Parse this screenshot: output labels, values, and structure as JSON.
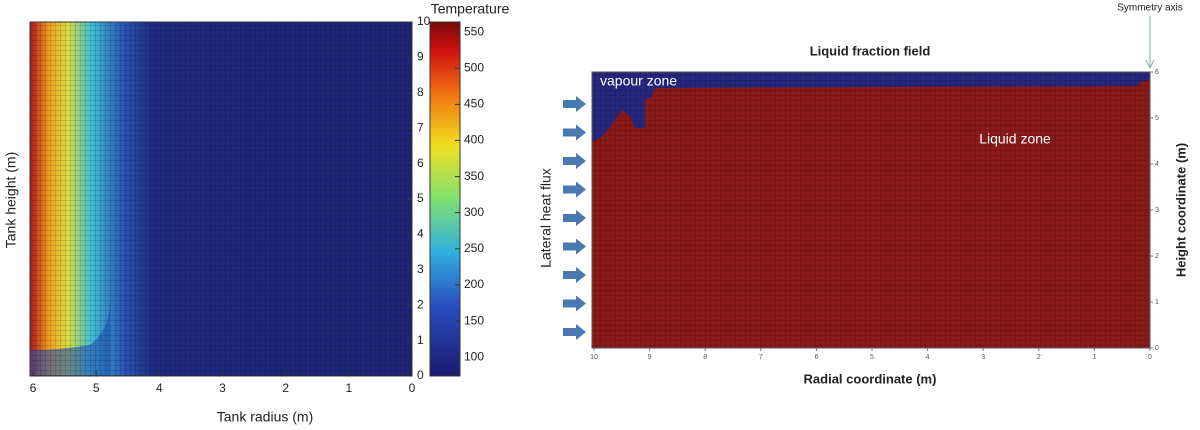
{
  "chart_data": [
    {
      "type": "heatmap",
      "xlabel": "Tank radius (m)",
      "ylabel": "Tank height (m)",
      "colorbar_title": "Temperature",
      "xlim": [
        6,
        0
      ],
      "xticks": [
        6,
        5,
        4,
        3,
        2,
        1,
        0
      ],
      "ylim": [
        0,
        10
      ],
      "yticks": [
        0,
        1,
        2,
        3,
        4,
        5,
        6,
        7,
        8,
        9,
        10
      ],
      "clim": [
        74,
        564
      ],
      "cticks": [
        100,
        150,
        200,
        250,
        300,
        350,
        400,
        450,
        500,
        550
      ]
    },
    {
      "type": "heatmap",
      "title": "Liquid fraction field",
      "xlabel": "Radial coordinate (m)",
      "ylabel": "Height coordinate (m)",
      "xlim": [
        10,
        0
      ],
      "xticks": [
        10,
        9,
        8,
        7,
        6,
        5,
        4,
        3,
        2,
        1,
        0
      ],
      "ylim": [
        0,
        6
      ],
      "yticks": [
        0,
        1,
        2,
        3,
        4,
        5,
        6
      ],
      "annotations": [
        "vapour zone",
        "Liquid zone",
        "Lateral heat flux",
        "Symmetry axis"
      ]
    }
  ]
}
